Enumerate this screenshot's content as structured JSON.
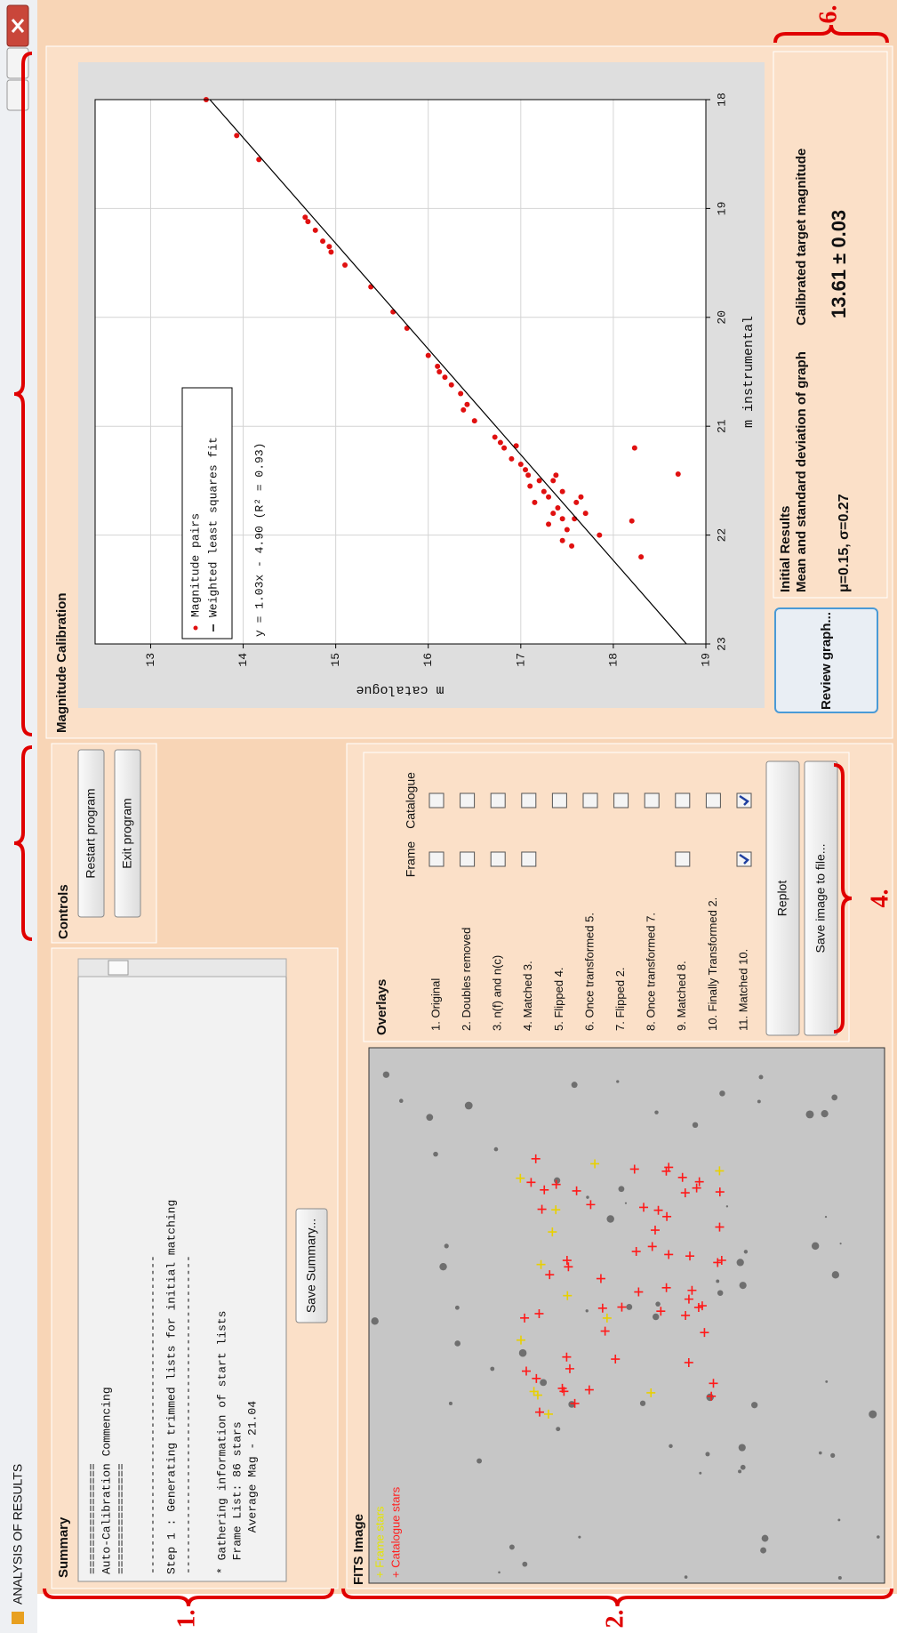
{
  "window": {
    "title": "ANALYSIS OF RESULTS"
  },
  "summary": {
    "title": "Summary",
    "lines": [
      "================",
      "Auto-Calibration Commencing",
      "================",
      "----------------------------------------------",
      "Step 1 : Generating trimmed lists for initial matching",
      "----------------------------------------------",
      "* Gathering information of start lists",
      "  Frame List: 86 stars",
      "      Average Mag - 21.04"
    ],
    "button": "Save Summary..."
  },
  "controls": {
    "title": "Controls",
    "buttons": [
      "Restart program",
      "Exit program"
    ]
  },
  "fits_image": {
    "title": "FITS Image",
    "legend": [
      "+ Frame stars",
      "+ Catalogue stars"
    ]
  },
  "overlays": {
    "title": "Overlays",
    "columns": [
      "Frame",
      "Catalogue"
    ],
    "rows": [
      {
        "label": "1. Original",
        "frame": false,
        "catalogue": false
      },
      {
        "label": "2. Doubles removed",
        "frame": false,
        "catalogue": false
      },
      {
        "label": "3. n(f) and n(c)",
        "frame": false,
        "catalogue": false
      },
      {
        "label": "4. Matched 3.",
        "frame": false,
        "catalogue": false
      },
      {
        "label": "5. Flipped 4.",
        "frame": null,
        "catalogue": false
      },
      {
        "label": "6. Once transformed 5.",
        "frame": null,
        "catalogue": false
      },
      {
        "label": "7. Flipped 2.",
        "frame": null,
        "catalogue": false
      },
      {
        "label": "8. Once transformed 7.",
        "frame": null,
        "catalogue": false
      },
      {
        "label": "9. Matched 8.",
        "frame": false,
        "catalogue": false
      },
      {
        "label": "10. Finally Transformed 2.",
        "frame": null,
        "catalogue": false
      },
      {
        "label": "11. Matched 10.",
        "frame": true,
        "catalogue": true
      }
    ],
    "buttons": [
      "Replot",
      "Save image to file..."
    ]
  },
  "chart_data": {
    "type": "scatter",
    "title": "Magnitude Calibration",
    "x_label": "m instrumental",
    "y_label": "m catalogue",
    "annotation": "y = 1.03x - 4.90 (R² = 0.93)",
    "xlim": [
      23,
      18
    ],
    "xticks": [
      23,
      22,
      21,
      20,
      19,
      18
    ],
    "ylim": [
      19,
      12.4
    ],
    "yticks": [
      13,
      14,
      15,
      16,
      17,
      18,
      19
    ],
    "grid": true,
    "series": [
      {
        "name": "Magnitude pairs",
        "color": "#e01010",
        "x": [
          18.0,
          18.33,
          18.55,
          19.08,
          19.12,
          19.2,
          19.3,
          19.35,
          19.4,
          19.52,
          19.72,
          19.95,
          20.1,
          20.35,
          20.45,
          20.5,
          20.55,
          20.62,
          20.7,
          20.8,
          20.85,
          20.95,
          21.1,
          21.15,
          21.2,
          21.18,
          21.35,
          21.4,
          21.45,
          21.3,
          21.5,
          21.55,
          21.6,
          21.65,
          21.7,
          21.75,
          21.8,
          21.85,
          21.9,
          21.95,
          22.05,
          22.1,
          21.5,
          21.6,
          21.7,
          21.8,
          22.0,
          21.85,
          21.45,
          21.65,
          21.2,
          21.44,
          21.87,
          22.2
        ],
        "values": [
          13.6,
          13.93,
          14.17,
          14.67,
          14.7,
          14.78,
          14.86,
          14.93,
          14.95,
          15.1,
          15.38,
          15.62,
          15.77,
          16.0,
          16.1,
          16.12,
          16.18,
          16.25,
          16.35,
          16.42,
          16.38,
          16.5,
          16.72,
          16.78,
          16.82,
          16.95,
          17.0,
          17.05,
          17.08,
          16.9,
          17.2,
          17.1,
          17.25,
          17.3,
          17.15,
          17.4,
          17.35,
          17.45,
          17.3,
          17.5,
          17.45,
          17.55,
          17.35,
          17.45,
          17.6,
          17.7,
          17.85,
          17.58,
          17.38,
          17.65,
          18.23,
          18.7,
          18.2,
          18.3
        ]
      },
      {
        "name": "Weighted least squares fit",
        "color": "#000000",
        "x": [
          23,
          18
        ],
        "values": [
          18.79,
          13.64
        ]
      }
    ]
  },
  "initial_results": {
    "title": "Initial Results",
    "left_heading": "Mean and standard deviation of graph",
    "left_value": "μ=0.15, σ=0.27",
    "right_heading": "Calibrated target magnitude",
    "right_value": "13.61 ± 0.03",
    "button": "Review graph..."
  },
  "annotations": [
    "1.",
    "2.",
    "4.",
    "6."
  ]
}
